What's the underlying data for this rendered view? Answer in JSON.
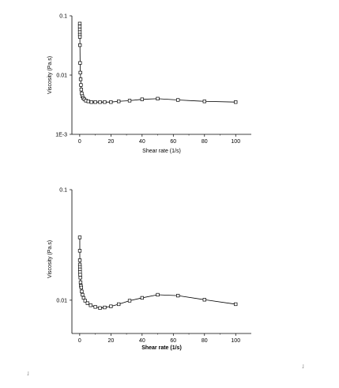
{
  "chart_data": [
    {
      "type": "scatter",
      "title": "",
      "xlabel": "Shear rate (1/s)",
      "ylabel": "Viscosity (Pa.s)",
      "xlim": [
        -5,
        110
      ],
      "ylim": [
        0.001,
        0.1
      ],
      "yscale": "log",
      "xticks": [
        0,
        20,
        40,
        60,
        80,
        100
      ],
      "yticks": [
        {
          "value": 0.001,
          "label": "1E-3"
        },
        {
          "value": 0.01,
          "label": "0.01"
        },
        {
          "value": 0.1,
          "label": "0.1"
        }
      ],
      "grid": false,
      "legend": "none",
      "line_connected": true,
      "series": [
        {
          "x": [
            0.05,
            0.05,
            0.06,
            0.07,
            0.08,
            0.1,
            0.15,
            0.25,
            0.4,
            0.6,
            0.8,
            1.0,
            1.3,
            1.7,
            2.2,
            3,
            4,
            5.5,
            7.5,
            10,
            13,
            16,
            20,
            25,
            32,
            40,
            50,
            63,
            80,
            100
          ],
          "y": [
            0.074,
            0.066,
            0.059,
            0.053,
            0.048,
            0.044,
            0.032,
            0.016,
            0.011,
            0.0085,
            0.0068,
            0.0057,
            0.0049,
            0.0044,
            0.0041,
            0.0039,
            0.0037,
            0.0036,
            0.0035,
            0.0035,
            0.0035,
            0.0035,
            0.0035,
            0.0036,
            0.0037,
            0.0039,
            0.004,
            0.0038,
            0.0036,
            0.0035
          ]
        }
      ]
    },
    {
      "type": "scatter",
      "title": "",
      "xlabel": "Shear rate (1/s)",
      "ylabel": "Viscosity (Pa.s)",
      "xlim": [
        -5,
        110
      ],
      "ylim": [
        0.005,
        0.1
      ],
      "yscale": "log",
      "xticks": [
        0,
        20,
        40,
        60,
        80,
        100
      ],
      "yticks": [
        {
          "value": 0.01,
          "label": "0.01"
        },
        {
          "value": 0.1,
          "label": "0.1"
        }
      ],
      "grid": false,
      "legend": "none",
      "line_connected": true,
      "series": [
        {
          "x": [
            0.05,
            0.06,
            0.08,
            0.1,
            0.13,
            0.17,
            0.22,
            0.3,
            0.4,
            0.55,
            0.75,
            1.0,
            1.3,
            1.8,
            2.5,
            3.5,
            5,
            7,
            10,
            13,
            16,
            20,
            25,
            32,
            40,
            50,
            63,
            80,
            100
          ],
          "y": [
            0.037,
            0.028,
            0.023,
            0.021,
            0.02,
            0.019,
            0.018,
            0.017,
            0.016,
            0.0145,
            0.0135,
            0.013,
            0.012,
            0.0112,
            0.0105,
            0.0099,
            0.0094,
            0.009,
            0.0087,
            0.0085,
            0.0086,
            0.0088,
            0.0092,
            0.0099,
            0.0105,
            0.0112,
            0.011,
            0.0101,
            0.0092
          ]
        }
      ]
    }
  ]
}
